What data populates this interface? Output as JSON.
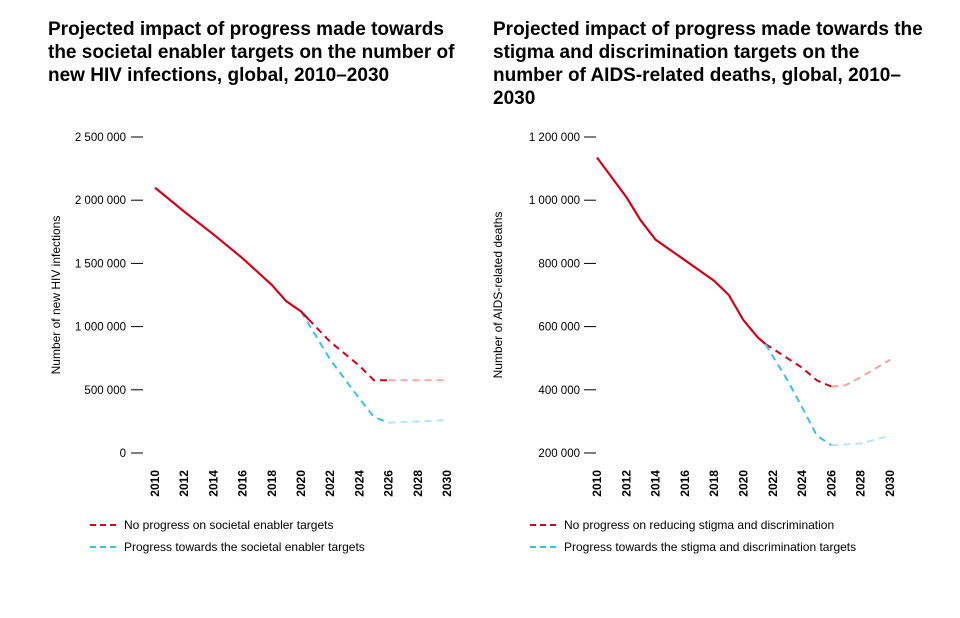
{
  "charts": [
    {
      "title": "Projected impact of progress made towards the societal enabler targets on the number of new HIV infections, global, 2010–2030",
      "chart_data": {
        "type": "line",
        "ylabel": "Number of new HIV infections",
        "xlabel": "",
        "xlim": [
          2010,
          2030
        ],
        "ylim": [
          0,
          2500000
        ],
        "x_ticks": [
          2010,
          2012,
          2014,
          2016,
          2018,
          2020,
          2022,
          2024,
          2026,
          2028,
          2030
        ],
        "y_ticks": [
          0,
          500000,
          1000000,
          1500000,
          2000000,
          2500000
        ],
        "y_tick_labels": [
          "0",
          "500 000",
          "1 000 000",
          "1 500 000",
          "2 000 000",
          "2 500 000"
        ],
        "historical": {
          "x": [
            2010,
            2012,
            2014,
            2016,
            2018,
            2019,
            2020,
            2020.5
          ],
          "y": [
            2100000,
            1910000,
            1730000,
            1540000,
            1330000,
            1200000,
            1120000,
            1060000
          ]
        },
        "series": [
          {
            "name": "No progress on societal enabler targets",
            "color": "#d0021b",
            "faded_color": "#f2a7a0",
            "x": [
              2020.5,
              2022,
              2024,
              2025,
              2026,
              2028,
              2030
            ],
            "y": [
              1060000,
              880000,
              690000,
              575000,
              575000,
              575000,
              575000
            ],
            "fade_from": 2026
          },
          {
            "name": "Progress towards the societal enabler targets",
            "color": "#3cbfe8",
            "faded_color": "#b9e4f5",
            "x": [
              2020,
              2022,
              2024,
              2025,
              2026,
              2028,
              2030
            ],
            "y": [
              1120000,
              740000,
              430000,
              285000,
              240000,
              250000,
              260000
            ],
            "fade_from": 2026
          }
        ],
        "legend_position": "bottom-left"
      }
    },
    {
      "title": "Projected impact of progress made towards the stigma and discrimination targets on the number of AIDS-related deaths, global, 2010–2030",
      "chart_data": {
        "type": "line",
        "ylabel": "Number of AIDS-related deaths",
        "xlabel": "",
        "xlim": [
          2010,
          2030
        ],
        "ylim": [
          200000,
          1200000
        ],
        "x_ticks": [
          2010,
          2012,
          2014,
          2016,
          2018,
          2020,
          2022,
          2024,
          2026,
          2028,
          2030
        ],
        "y_ticks": [
          200000,
          400000,
          600000,
          800000,
          1000000,
          1200000
        ],
        "y_tick_labels": [
          "200 000",
          "400 000",
          "600 000",
          "800 000",
          "1 000 000",
          "1 200 000"
        ],
        "historical": {
          "x": [
            2010,
            2012,
            2013,
            2014,
            2016,
            2018,
            2019,
            2020,
            2021,
            2021.5
          ],
          "y": [
            1135000,
            1010000,
            935000,
            875000,
            810000,
            745000,
            700000,
            620000,
            565000,
            545000
          ]
        },
        "series": [
          {
            "name": "No progress on reducing stigma and discrimination",
            "color": "#d0021b",
            "faded_color": "#f2a7a0",
            "x": [
              2021.5,
              2024,
              2025,
              2026,
              2027,
              2028,
              2030
            ],
            "y": [
              545000,
              470000,
              430000,
              410000,
              415000,
              440000,
              495000
            ],
            "fade_from": 2026
          },
          {
            "name": "Progress towards the stigma and discrimination targets",
            "color": "#3cbfe8",
            "faded_color": "#b9e4f5",
            "x": [
              2021.5,
              2023,
              2024,
              2025,
              2026,
              2028,
              2030
            ],
            "y": [
              545000,
              430000,
              345000,
              255000,
              225000,
              230000,
              255000
            ],
            "fade_from": 2026
          }
        ],
        "legend_position": "bottom-left"
      }
    }
  ]
}
